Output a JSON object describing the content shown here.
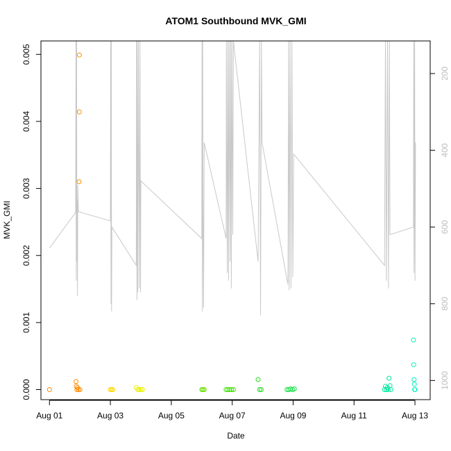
{
  "chart_data": {
    "type": "scatter",
    "title": "ATOM1 Southbound MVK_GMI",
    "xlabel": "Date",
    "ylabel": "MVK_GMI",
    "x_ticks": [
      {
        "day": 0,
        "label": "Aug 01"
      },
      {
        "day": 2,
        "label": "Aug 03"
      },
      {
        "day": 4,
        "label": "Aug 05"
      },
      {
        "day": 6,
        "label": "Aug 07"
      },
      {
        "day": 8,
        "label": "Aug 09"
      },
      {
        "day": 10,
        "label": "Aug 11"
      },
      {
        "day": 12,
        "label": "Aug 13"
      }
    ],
    "xlim_days_since_aug01": [
      -0.28,
      12.5
    ],
    "ylim": [
      -0.00015,
      0.0052
    ],
    "y_ticks": [
      0.0,
      0.001,
      0.002,
      0.003,
      0.004,
      0.005
    ],
    "y_tick_labels": [
      "0.000",
      "0.001",
      "0.002",
      "0.003",
      "0.004",
      "0.005"
    ],
    "y2_ticks": [
      200,
      400,
      600,
      800,
      1000
    ],
    "y2_tick_labels": [
      "200",
      "400",
      "600",
      "800",
      "1000"
    ],
    "y2lim": [
      1050,
      115
    ],
    "y2_reversed": true,
    "grid": false,
    "points": [
      {
        "x": 0.0,
        "y": 0.0,
        "color": "#ff8c00"
      },
      {
        "x": 0.87,
        "y": 0.00012,
        "color": "#ff8c00"
      },
      {
        "x": 0.88,
        "y": 5e-05,
        "color": "#ff8c00"
      },
      {
        "x": 0.9,
        "y": 0.0,
        "color": "#ff8c00"
      },
      {
        "x": 0.92,
        "y": 3e-05,
        "color": "#ff8c00"
      },
      {
        "x": 0.95,
        "y": 0.0,
        "color": "#ff8c00"
      },
      {
        "x": 0.97,
        "y": 0.0031,
        "color": "#ff8c00"
      },
      {
        "x": 0.98,
        "y": 0.00414,
        "color": "#ff8c00"
      },
      {
        "x": 0.98,
        "y": 0.00499,
        "color": "#ff8c00"
      },
      {
        "x": 1.0,
        "y": 0.0,
        "color": "#ff8c00"
      },
      {
        "x": 2.0,
        "y": 0.0,
        "color": "#ffd700"
      },
      {
        "x": 2.04,
        "y": 0.0,
        "color": "#ffd700"
      },
      {
        "x": 2.08,
        "y": 0.0,
        "color": "#ffd700"
      },
      {
        "x": 2.85,
        "y": 3e-05,
        "color": "#e8f000"
      },
      {
        "x": 2.9,
        "y": 0.0,
        "color": "#e8f000"
      },
      {
        "x": 2.95,
        "y": 0.0,
        "color": "#e8f000"
      },
      {
        "x": 3.0,
        "y": 0.0,
        "color": "#e8f000"
      },
      {
        "x": 3.05,
        "y": 0.0,
        "color": "#e8f000"
      },
      {
        "x": 5.0,
        "y": 0.0,
        "color": "#66e000"
      },
      {
        "x": 5.04,
        "y": 0.0,
        "color": "#66e000"
      },
      {
        "x": 5.08,
        "y": 0.0,
        "color": "#66e000"
      },
      {
        "x": 5.8,
        "y": 0.0,
        "color": "#3ce000"
      },
      {
        "x": 5.86,
        "y": 0.0,
        "color": "#3ce000"
      },
      {
        "x": 5.92,
        "y": 0.0,
        "color": "#3ce000"
      },
      {
        "x": 5.98,
        "y": 0.0,
        "color": "#3ce000"
      },
      {
        "x": 6.04,
        "y": 0.0,
        "color": "#3ce000"
      },
      {
        "x": 6.85,
        "y": 0.00015,
        "color": "#20e020"
      },
      {
        "x": 6.9,
        "y": 0.0,
        "color": "#20e020"
      },
      {
        "x": 6.95,
        "y": 0.0,
        "color": "#20e020"
      },
      {
        "x": 7.8,
        "y": 0.0,
        "color": "#10e040"
      },
      {
        "x": 7.86,
        "y": 0.0,
        "color": "#10e040"
      },
      {
        "x": 7.92,
        "y": 1e-05,
        "color": "#10e040"
      },
      {
        "x": 7.98,
        "y": 0.0,
        "color": "#10e040"
      },
      {
        "x": 8.04,
        "y": 1e-05,
        "color": "#10e040"
      },
      {
        "x": 11.0,
        "y": 0.0,
        "color": "#00e8a0"
      },
      {
        "x": 11.03,
        "y": 5e-05,
        "color": "#00e8a0"
      },
      {
        "x": 11.06,
        "y": 0.0,
        "color": "#00e8a0"
      },
      {
        "x": 11.09,
        "y": 3e-05,
        "color": "#00e8a0"
      },
      {
        "x": 11.12,
        "y": 0.0,
        "color": "#00e8a0"
      },
      {
        "x": 11.15,
        "y": 0.00017,
        "color": "#00e8a0"
      },
      {
        "x": 11.18,
        "y": 6e-05,
        "color": "#00e8a0"
      },
      {
        "x": 11.21,
        "y": 0.0,
        "color": "#00e8a0"
      },
      {
        "x": 11.95,
        "y": 0.00074,
        "color": "#00f0c0"
      },
      {
        "x": 11.96,
        "y": 0.00037,
        "color": "#00f0c0"
      },
      {
        "x": 11.97,
        "y": 0.00015,
        "color": "#00f0c0"
      },
      {
        "x": 11.98,
        "y": 8e-05,
        "color": "#00f0c0"
      },
      {
        "x": 11.99,
        "y": 0.0,
        "color": "#00f0c0"
      },
      {
        "x": 12.0,
        "y": 0.0,
        "color": "#00f0c0"
      }
    ],
    "depth_line": {
      "color": "#c8c8c8",
      "points": [
        [
          0.0,
          655
        ],
        [
          0.86,
          562
        ],
        [
          0.87,
          115
        ],
        [
          0.88,
          740
        ],
        [
          0.89,
          115
        ],
        [
          0.9,
          690
        ],
        [
          0.91,
          530
        ],
        [
          0.92,
          780
        ],
        [
          0.93,
          490
        ],
        [
          0.95,
          560
        ],
        [
          2.0,
          584
        ],
        [
          2.01,
          115
        ],
        [
          2.02,
          800
        ],
        [
          2.03,
          115
        ],
        [
          2.04,
          820
        ],
        [
          2.05,
          600
        ],
        [
          2.85,
          700
        ],
        [
          2.86,
          115
        ],
        [
          2.87,
          790
        ],
        [
          2.88,
          115
        ],
        [
          2.9,
          770
        ],
        [
          2.92,
          115
        ],
        [
          2.95,
          760
        ],
        [
          2.97,
          115
        ],
        [
          2.99,
          770
        ],
        [
          3.0,
          480
        ],
        [
          5.0,
          630
        ],
        [
          5.01,
          115
        ],
        [
          5.02,
          820
        ],
        [
          5.03,
          115
        ],
        [
          5.04,
          500
        ],
        [
          5.06,
          810
        ],
        [
          5.08,
          380
        ],
        [
          5.8,
          630
        ],
        [
          5.81,
          115
        ],
        [
          5.84,
          720
        ],
        [
          5.86,
          115
        ],
        [
          5.88,
          740
        ],
        [
          5.9,
          115
        ],
        [
          5.93,
          690
        ],
        [
          5.95,
          115
        ],
        [
          5.97,
          760
        ],
        [
          5.99,
          115
        ],
        [
          6.02,
          620
        ],
        [
          6.04,
          115
        ],
        [
          6.85,
          690
        ],
        [
          6.9,
          115
        ],
        [
          6.93,
          830
        ],
        [
          6.96,
          115
        ],
        [
          6.98,
          380
        ],
        [
          7.83,
          750
        ],
        [
          7.85,
          115
        ],
        [
          7.87,
          765
        ],
        [
          7.9,
          115
        ],
        [
          7.93,
          760
        ],
        [
          7.96,
          115
        ],
        [
          7.99,
          730
        ],
        [
          8.02,
          410
        ],
        [
          11.0,
          700
        ],
        [
          11.03,
          115
        ],
        [
          11.06,
          740
        ],
        [
          11.1,
          115
        ],
        [
          11.13,
          760
        ],
        [
          11.16,
          115
        ],
        [
          11.18,
          620
        ],
        [
          11.95,
          600
        ],
        [
          11.96,
          115
        ],
        [
          11.97,
          720
        ],
        [
          11.98,
          360
        ],
        [
          11.99,
          115
        ],
        [
          12.0,
          740
        ],
        [
          12.02,
          380
        ]
      ]
    }
  }
}
